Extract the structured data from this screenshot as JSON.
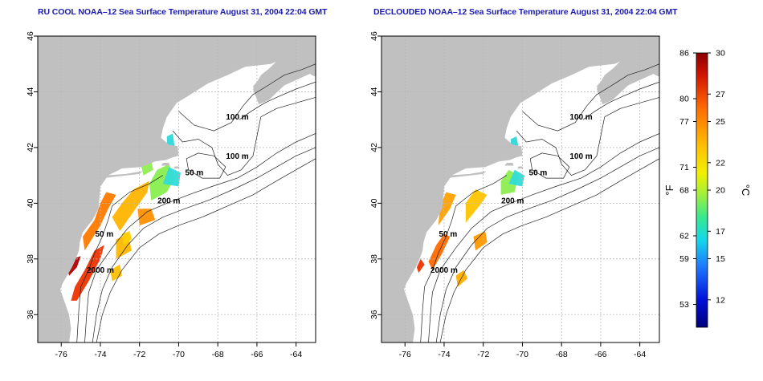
{
  "panels": [
    {
      "id": "left",
      "title": "RU COOL NOAA–12 Sea Surface Temperature August 31, 2004 22:04 GMT",
      "sst_coverage": "cloud-contaminated"
    },
    {
      "id": "right",
      "title": "DECLOUDED NOAA–12 Sea Surface Temperature August 31, 2004 22:04 GMT",
      "sst_coverage": "declouded"
    }
  ],
  "axes": {
    "x_ticks": [
      "-76",
      "-74",
      "-72",
      "-70",
      "-68",
      "-66",
      "-64"
    ],
    "y_ticks": [
      "36",
      "38",
      "40",
      "42",
      "44",
      "46"
    ],
    "x_range": [
      -77.2,
      -63.0
    ],
    "y_range": [
      35.0,
      46.0
    ]
  },
  "contour_labels": [
    {
      "text": "100 m",
      "lon": -67.0,
      "lat": 43.0
    },
    {
      "text": "100 m",
      "lon": -67.0,
      "lat": 41.6
    },
    {
      "text": "50 m",
      "lon": -69.2,
      "lat": 41.0
    },
    {
      "text": "200 m",
      "lon": -70.5,
      "lat": 40.0
    },
    {
      "text": "50 m",
      "lon": -73.8,
      "lat": 38.8
    },
    {
      "text": "2000 m",
      "lon": -74.0,
      "lat": 37.5
    }
  ],
  "colorbar": {
    "fahrenheit_ticks": [
      "86",
      "80",
      "77",
      "71",
      "68",
      "62",
      "59",
      "53"
    ],
    "celsius_ticks": [
      "30",
      "27",
      "25",
      "22",
      "20",
      "17",
      "15",
      "12"
    ],
    "fahrenheit_unit": "°F",
    "celsius_unit": "°C",
    "range_c": [
      10,
      30
    ],
    "colors": [
      "#b00000",
      "#ee2a00",
      "#ff8c00",
      "#ffd400",
      "#c8ff40",
      "#4cf07a",
      "#1ee0e0",
      "#1c86ff",
      "#0000c8",
      "#00007a"
    ]
  },
  "colors": {
    "land": "#c0c0c0",
    "ocean": "#ffffff",
    "grid": "#b8b8b8",
    "title": "#1a1ab0"
  }
}
